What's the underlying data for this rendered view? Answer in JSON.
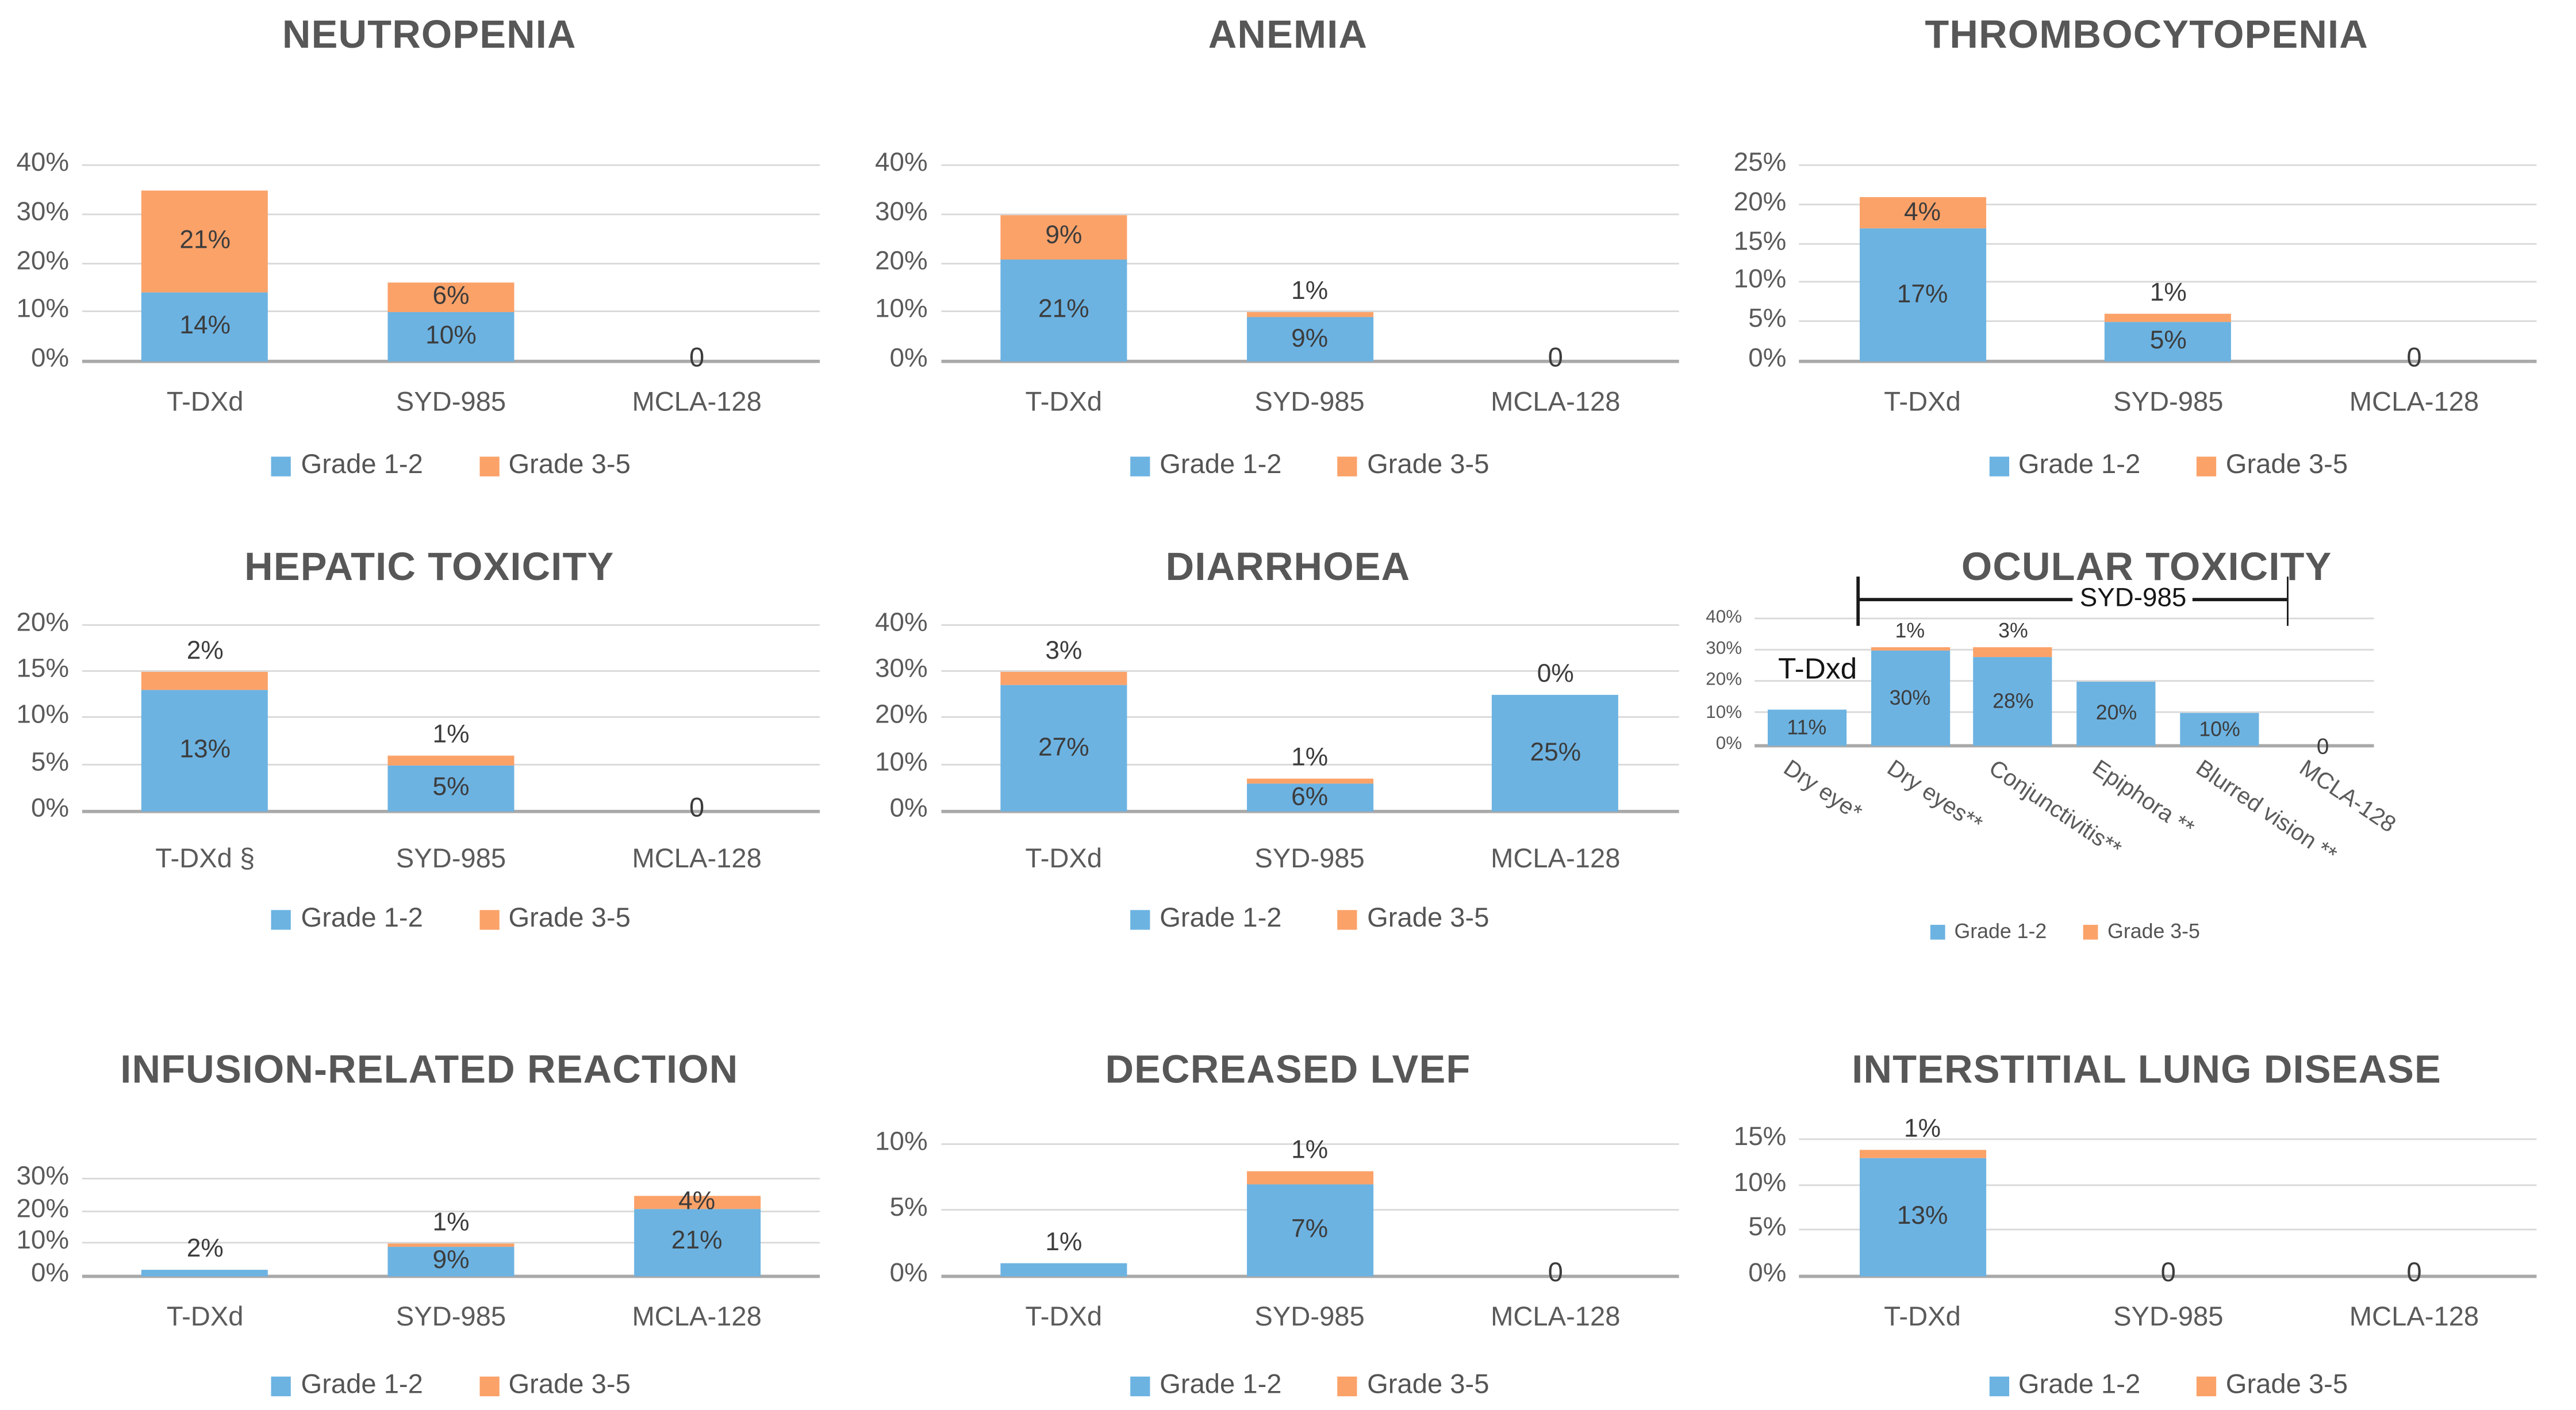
{
  "page": {
    "background": "#FFFFFF",
    "description": "Grid of nine stacked bar charts comparing adverse event rates of T-DXd, SYD-985 and MCLA-128"
  },
  "colors": {
    "grade12_blue": "#6CB3E2",
    "grade35_orange": "#FBA269",
    "gridline": "#D9D9D9",
    "axis_line": "#A9A9A9",
    "title_text": "#575757",
    "tick_text": "#5A5A5A",
    "bar_label_text": "#3C3C3C",
    "annotation_text": "#151515"
  },
  "legend": {
    "grade12": "Grade 1-2",
    "grade35": "Grade 3-5"
  },
  "chart_data": [
    {
      "id": "neutropenia",
      "type": "bar",
      "stacked": true,
      "title": "NEUTROPENIA",
      "ylim": [
        0,
        40
      ],
      "yticks": [
        {
          "value": 0,
          "label": "0%"
        },
        {
          "value": 10,
          "label": "10%"
        },
        {
          "value": 20,
          "label": "20%"
        },
        {
          "value": 30,
          "label": "30%"
        },
        {
          "value": 40,
          "label": "40%"
        }
      ],
      "categories": [
        "T-DXd",
        "SYD-985",
        "MCLA-128"
      ],
      "series": [
        {
          "name": "Grade 1-2",
          "values": [
            14,
            10,
            0
          ]
        },
        {
          "name": "Grade 3-5",
          "values": [
            21,
            6,
            0
          ]
        }
      ],
      "bars": [
        {
          "category": "T-DXd",
          "g12": 14,
          "g35": 21,
          "g12_label": {
            "text": "14%",
            "pos": "inside"
          },
          "g35_label": {
            "text": "21%",
            "pos": "inside"
          }
        },
        {
          "category": "SYD-985",
          "g12": 10,
          "g35": 6,
          "g12_label": {
            "text": "10%",
            "pos": "inside"
          },
          "g35_label": {
            "text": "6%",
            "pos": "inside"
          }
        },
        {
          "category": "MCLA-128",
          "g12": 0,
          "g35": 0,
          "zero_label": "0"
        }
      ]
    },
    {
      "id": "anemia",
      "type": "bar",
      "stacked": true,
      "title": "ANEMIA",
      "ylim": [
        0,
        40
      ],
      "yticks": [
        {
          "value": 0,
          "label": "0%"
        },
        {
          "value": 10,
          "label": "10%"
        },
        {
          "value": 20,
          "label": "20%"
        },
        {
          "value": 30,
          "label": "30%"
        },
        {
          "value": 40,
          "label": "40%"
        }
      ],
      "categories": [
        "T-DXd",
        "SYD-985",
        "MCLA-128"
      ],
      "series": [
        {
          "name": "Grade 1-2",
          "values": [
            21,
            9,
            0
          ]
        },
        {
          "name": "Grade 3-5",
          "values": [
            9,
            1,
            0
          ]
        }
      ],
      "bars": [
        {
          "category": "T-DXd",
          "g12": 21,
          "g35": 9,
          "g12_label": {
            "text": "21%",
            "pos": "inside"
          },
          "g35_label": {
            "text": "9%",
            "pos": "inside"
          }
        },
        {
          "category": "SYD-985",
          "g12": 9,
          "g35": 1,
          "g12_label": {
            "text": "9%",
            "pos": "inside"
          },
          "g35_label": {
            "text": "1%",
            "pos": "above"
          }
        },
        {
          "category": "MCLA-128",
          "g12": 0,
          "g35": 0,
          "zero_label": "0"
        }
      ]
    },
    {
      "id": "thrombocytopenia",
      "type": "bar",
      "stacked": true,
      "title": "THROMBOCYTOPENIA",
      "ylim": [
        0,
        25
      ],
      "yticks": [
        {
          "value": 0,
          "label": "0%"
        },
        {
          "value": 5,
          "label": "5%"
        },
        {
          "value": 10,
          "label": "10%"
        },
        {
          "value": 15,
          "label": "15%"
        },
        {
          "value": 20,
          "label": "20%"
        },
        {
          "value": 25,
          "label": "25%"
        }
      ],
      "categories": [
        "T-DXd",
        "SYD-985",
        "MCLA-128"
      ],
      "series": [
        {
          "name": "Grade 1-2",
          "values": [
            17,
            5,
            0
          ]
        },
        {
          "name": "Grade 3-5",
          "values": [
            4,
            1,
            0
          ]
        }
      ],
      "bars": [
        {
          "category": "T-DXd",
          "g12": 17,
          "g35": 4,
          "g12_label": {
            "text": "17%",
            "pos": "inside"
          },
          "g35_label": {
            "text": "4%",
            "pos": "inside"
          }
        },
        {
          "category": "SYD-985",
          "g12": 5,
          "g35": 1,
          "g12_label": {
            "text": "5%",
            "pos": "inside"
          },
          "g35_label": {
            "text": "1%",
            "pos": "above"
          }
        },
        {
          "category": "MCLA-128",
          "g12": 0,
          "g35": 0,
          "zero_label": "0"
        }
      ]
    },
    {
      "id": "hepatic-toxicity",
      "type": "bar",
      "stacked": true,
      "title": "HEPATIC TOXICITY",
      "ylim": [
        0,
        20
      ],
      "yticks": [
        {
          "value": 0,
          "label": "0%"
        },
        {
          "value": 5,
          "label": "5%"
        },
        {
          "value": 10,
          "label": "10%"
        },
        {
          "value": 15,
          "label": "15%"
        },
        {
          "value": 20,
          "label": "20%"
        }
      ],
      "categories": [
        "T-DXd §",
        "SYD-985",
        "MCLA-128"
      ],
      "series": [
        {
          "name": "Grade 1-2",
          "values": [
            13,
            5,
            0
          ]
        },
        {
          "name": "Grade 3-5",
          "values": [
            2,
            1,
            0
          ]
        }
      ],
      "bars": [
        {
          "category": "T-DXd §",
          "g12": 13,
          "g35": 2,
          "g12_label": {
            "text": "13%",
            "pos": "inside"
          },
          "g35_label": {
            "text": "2%",
            "pos": "above"
          }
        },
        {
          "category": "SYD-985",
          "g12": 5,
          "g35": 1,
          "g12_label": {
            "text": "5%",
            "pos": "inside"
          },
          "g35_label": {
            "text": "1%",
            "pos": "above"
          }
        },
        {
          "category": "MCLA-128",
          "g12": 0,
          "g35": 0,
          "zero_label": "0"
        }
      ]
    },
    {
      "id": "diarrhoea",
      "type": "bar",
      "stacked": true,
      "title": "DIARRHOEA",
      "ylim": [
        0,
        40
      ],
      "yticks": [
        {
          "value": 0,
          "label": "0%"
        },
        {
          "value": 10,
          "label": "10%"
        },
        {
          "value": 20,
          "label": "20%"
        },
        {
          "value": 30,
          "label": "30%"
        },
        {
          "value": 40,
          "label": "40%"
        }
      ],
      "categories": [
        "T-DXd",
        "SYD-985",
        "MCLA-128"
      ],
      "series": [
        {
          "name": "Grade 1-2",
          "values": [
            27,
            6,
            25
          ]
        },
        {
          "name": "Grade 3-5",
          "values": [
            3,
            1,
            0
          ]
        }
      ],
      "bars": [
        {
          "category": "T-DXd",
          "g12": 27,
          "g35": 3,
          "g12_label": {
            "text": "27%",
            "pos": "inside"
          },
          "g35_label": {
            "text": "3%",
            "pos": "above"
          }
        },
        {
          "category": "SYD-985",
          "g12": 6,
          "g35": 1,
          "g12_label": {
            "text": "6%",
            "pos": "inside"
          },
          "g35_label": {
            "text": "1%",
            "pos": "above"
          }
        },
        {
          "category": "MCLA-128",
          "g12": 25,
          "g35": 0,
          "g12_label": {
            "text": "25%",
            "pos": "inside"
          },
          "g35_label": {
            "text": "0%",
            "pos": "above"
          }
        }
      ]
    },
    {
      "id": "ocular-toxicity",
      "type": "bar",
      "stacked": true,
      "title": "OCULAR TOXICITY",
      "ylim": [
        0,
        40
      ],
      "yticks": [
        {
          "value": 0,
          "label": "0%"
        },
        {
          "value": 10,
          "label": "10%"
        },
        {
          "value": 20,
          "label": "20%"
        },
        {
          "value": 30,
          "label": "30%"
        },
        {
          "value": 40,
          "label": "40%"
        }
      ],
      "categories": [
        "Dry eye*",
        "Dry eyes**",
        "Conjunctivitis**",
        "Epiphora **",
        "Blurred vision **",
        "MCLA-128"
      ],
      "series": [
        {
          "name": "Grade 1-2",
          "values": [
            11,
            30,
            28,
            20,
            10,
            0
          ]
        },
        {
          "name": "Grade 3-5",
          "values": [
            0,
            1,
            3,
            0,
            0,
            0
          ]
        }
      ],
      "annotation": {
        "text": "T-Dxd",
        "over_category": "Dry eye*"
      },
      "bracket": {
        "label": "SYD-985",
        "from_category": "Dry eyes**",
        "to_category": "Blurred vision **"
      },
      "bars": [
        {
          "category": "Dry eye*",
          "g12": 11,
          "g35": 0,
          "g12_label": {
            "text": "11%",
            "pos": "inside"
          }
        },
        {
          "category": "Dry eyes**",
          "g12": 30,
          "g35": 1,
          "g12_label": {
            "text": "30%",
            "pos": "inside"
          },
          "g35_label": {
            "text": "1%",
            "pos": "above"
          }
        },
        {
          "category": "Conjunctivitis**",
          "g12": 28,
          "g35": 3,
          "g12_label": {
            "text": "28%",
            "pos": "inside"
          },
          "g35_label": {
            "text": "3%",
            "pos": "above"
          }
        },
        {
          "category": "Epiphora **",
          "g12": 20,
          "g35": 0,
          "g12_label": {
            "text": "20%",
            "pos": "inside"
          }
        },
        {
          "category": "Blurred vision **",
          "g12": 10,
          "g35": 0,
          "g12_label": {
            "text": "10%",
            "pos": "inside"
          }
        },
        {
          "category": "MCLA-128",
          "g12": 0,
          "g35": 0,
          "zero_label": "0"
        }
      ]
    },
    {
      "id": "infusion-related-reaction",
      "type": "bar",
      "stacked": true,
      "title": "INFUSION-RELATED REACTION",
      "ylim": [
        0,
        30
      ],
      "yticks": [
        {
          "value": 0,
          "label": "0%"
        },
        {
          "value": 10,
          "label": "10%"
        },
        {
          "value": 20,
          "label": "20%"
        },
        {
          "value": 30,
          "label": "30%"
        }
      ],
      "categories": [
        "T-DXd",
        "SYD-985",
        "MCLA-128"
      ],
      "series": [
        {
          "name": "Grade 1-2",
          "values": [
            2,
            9,
            21
          ]
        },
        {
          "name": "Grade 3-5",
          "values": [
            0,
            1,
            4
          ]
        }
      ],
      "bars": [
        {
          "category": "T-DXd",
          "g12": 2,
          "g35": 0,
          "g12_label": {
            "text": "2%",
            "pos": "above"
          }
        },
        {
          "category": "SYD-985",
          "g12": 9,
          "g35": 1,
          "g12_label": {
            "text": "9%",
            "pos": "inside"
          },
          "g35_label": {
            "text": "1%",
            "pos": "above"
          }
        },
        {
          "category": "MCLA-128",
          "g12": 21,
          "g35": 4,
          "g12_label": {
            "text": "21%",
            "pos": "inside"
          },
          "g35_label": {
            "text": "4%",
            "pos": "inside"
          }
        }
      ]
    },
    {
      "id": "decreased-lvef",
      "type": "bar",
      "stacked": true,
      "title": "DECREASED LVEF",
      "ylim": [
        0,
        10
      ],
      "yticks": [
        {
          "value": 0,
          "label": "0%"
        },
        {
          "value": 5,
          "label": "5%"
        },
        {
          "value": 10,
          "label": "10%"
        }
      ],
      "categories": [
        "T-DXd",
        "SYD-985",
        "MCLA-128"
      ],
      "series": [
        {
          "name": "Grade 1-2",
          "values": [
            1,
            7,
            0
          ]
        },
        {
          "name": "Grade 3-5",
          "values": [
            0,
            1,
            0
          ]
        }
      ],
      "bars": [
        {
          "category": "T-DXd",
          "g12": 1,
          "g35": 0,
          "g12_label": {
            "text": "1%",
            "pos": "above"
          }
        },
        {
          "category": "SYD-985",
          "g12": 7,
          "g35": 1,
          "g12_label": {
            "text": "7%",
            "pos": "inside"
          },
          "g35_label": {
            "text": "1%",
            "pos": "above"
          }
        },
        {
          "category": "MCLA-128",
          "g12": 0,
          "g35": 0,
          "zero_label": "0"
        }
      ]
    },
    {
      "id": "interstitial-lung-disease",
      "type": "bar",
      "stacked": true,
      "title": "INTERSTITIAL LUNG DISEASE",
      "ylim": [
        0,
        15
      ],
      "yticks": [
        {
          "value": 0,
          "label": "0%"
        },
        {
          "value": 5,
          "label": "5%"
        },
        {
          "value": 10,
          "label": "10%"
        },
        {
          "value": 15,
          "label": "15%"
        }
      ],
      "categories": [
        "T-DXd",
        "SYD-985",
        "MCLA-128"
      ],
      "series": [
        {
          "name": "Grade 1-2",
          "values": [
            13,
            0,
            0
          ]
        },
        {
          "name": "Grade 3-5",
          "values": [
            1,
            0,
            0
          ]
        }
      ],
      "bars": [
        {
          "category": "T-DXd",
          "g12": 13,
          "g35": 1,
          "g12_label": {
            "text": "13%",
            "pos": "inside"
          },
          "g35_label": {
            "text": "1%",
            "pos": "above"
          }
        },
        {
          "category": "SYD-985",
          "g12": 0,
          "g35": 0,
          "zero_label": "0"
        },
        {
          "category": "MCLA-128",
          "g12": 0,
          "g35": 0,
          "zero_label": "0"
        }
      ]
    }
  ]
}
